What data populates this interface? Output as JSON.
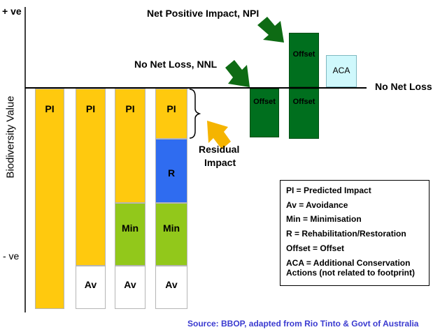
{
  "axis": {
    "y_label": "Biodiversity Value",
    "top_label": "+ ve",
    "bottom_label": "- ve",
    "baseline_label": "No Net Loss"
  },
  "bars": [
    {
      "segments": [
        {
          "label": "PI",
          "color": "#FFC90E"
        }
      ]
    },
    {
      "segments": [
        {
          "label": "PI",
          "color": "#FFC90E"
        },
        {
          "label": "Av",
          "color": "#FFFFFF"
        }
      ]
    },
    {
      "segments": [
        {
          "label": "PI",
          "color": "#FFC90E"
        },
        {
          "label": "Min",
          "color": "#92C81B"
        },
        {
          "label": "Av",
          "color": "#FFFFFF"
        }
      ]
    },
    {
      "segments": [
        {
          "label": "PI",
          "color": "#FFC90E"
        },
        {
          "label": "R",
          "color": "#2F6CF0"
        },
        {
          "label": "Min",
          "color": "#92C81B"
        },
        {
          "label": "Av",
          "color": "#FFFFFF"
        }
      ]
    }
  ],
  "offsets": {
    "nnl_offset": {
      "label": "Offset",
      "color": "#006F1E"
    },
    "npi_offset_above": {
      "label": "Offset",
      "color": "#006F1E"
    },
    "npi_offset_below": {
      "label": "Offset",
      "color": "#006F1E"
    },
    "aca": {
      "label": "ACA",
      "color": "#CFF8FC"
    }
  },
  "annotations": {
    "npi": "Net Positive Impact, NPI",
    "nnl": "No Net Loss, NNL",
    "residual_line1": "Residual",
    "residual_line2": "Impact",
    "arrow_green": "#0E6B14",
    "arrow_orange": "#F5B400"
  },
  "legend": [
    "PI = Predicted Impact",
    "Av = Avoidance",
    "Min = Minimisation",
    "R =  Rehabilitation/Restoration",
    "Offset = Offset",
    "ACA = Additional Conservation Actions (not related to footprint)"
  ],
  "source": "Source:  BBOP, adapted from Rio Tinto & Govt of Australia",
  "source_color": "#3A3AD0"
}
